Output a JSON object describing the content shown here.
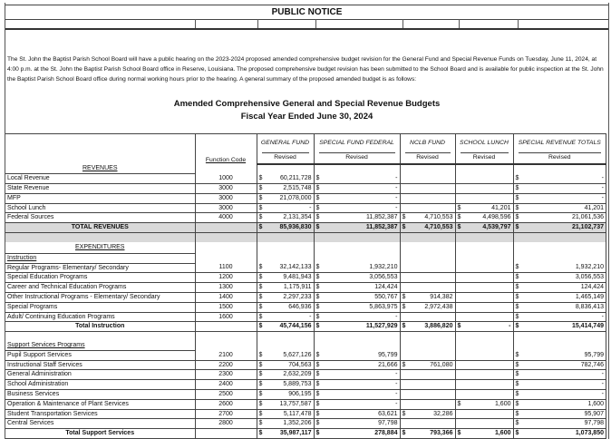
{
  "notice_title": "PUBLIC NOTICE",
  "intro": "The St. John the Baptist Parish School Board will have a public hearing on the 2023-2024 proposed amended comprehensive budget revision for the General Fund and Special Revenue Funds on Tuesday, June 11, 2024, at 4:00 p.m. at the St. John the Baptist Parish School Board office in Reserve, Louisiana.  The proposed comprehensive budget revision has been submitted to the School Board and is available for public inspection at the St. John the Baptist Parish School Board office during normal working hours prior to the hearing.  A general summary of the proposed amended budget is as follows:",
  "title": "Amended Comprehensive General and Special Revenue Budgets",
  "subtitle": "Fiscal Year Ended June 30, 2024",
  "columns": {
    "function_code": "Function Code",
    "funds": [
      "GENERAL FUND",
      "SPECIAL FUND FEDERAL",
      "NCLB FUND",
      "SCHOOL LUNCH",
      "SPECIAL REVENUE TOTALS"
    ],
    "sub": "Revised"
  },
  "currency": "$",
  "rows": [
    {
      "type": "heading",
      "label": "REVENUES"
    },
    {
      "label": "Local Revenue",
      "code": "1000",
      "v": [
        "60,211,728",
        "-",
        null,
        null,
        "-"
      ]
    },
    {
      "label": "State Revenue",
      "code": "3000",
      "v": [
        "2,515,748",
        "-",
        null,
        null,
        "-"
      ]
    },
    {
      "label": "MFP",
      "code": "3000",
      "v": [
        "21,078,000",
        "-",
        null,
        null,
        "-"
      ]
    },
    {
      "label": "School Lunch",
      "code": "3000",
      "v": [
        "-",
        "-",
        null,
        "41,201",
        "41,201"
      ]
    },
    {
      "label": "Federal Sources",
      "code": "4000",
      "v": [
        "2,131,354",
        "11,852,387",
        "4,710,553",
        "4,498,596",
        "21,061,536"
      ]
    },
    {
      "type": "total",
      "gray": true,
      "label": "TOTAL REVENUES",
      "v": [
        "85,936,830",
        "11,852,387",
        "4,710,553",
        "4,539,797",
        "21,102,737"
      ]
    },
    {
      "type": "spacer",
      "gray": true
    },
    {
      "type": "heading",
      "label": "EXPENDITURES"
    },
    {
      "type": "section",
      "label": "Instruction"
    },
    {
      "label": "Regular Programs- Elementary/ Secondary",
      "code": "1100",
      "v": [
        "32,142,133",
        "1,932,210",
        null,
        null,
        "1,932,210"
      ]
    },
    {
      "label": "Special Education Programs",
      "code": "1200",
      "v": [
        "9,481,943",
        "3,056,553",
        null,
        null,
        "3,056,553"
      ]
    },
    {
      "label": "Career and Technical Education Programs",
      "code": "1300",
      "v": [
        "1,175,911",
        "124,424",
        null,
        null,
        "124,424"
      ]
    },
    {
      "label": "Other Instructional Programs - Elementary/ Secondary",
      "code": "1400",
      "v": [
        "2,297,233",
        "550,767",
        "914,382",
        null,
        "1,465,149"
      ]
    },
    {
      "label": "Special Programs",
      "code": "1500",
      "v": [
        "646,936",
        "5,863,975",
        "2,972,438",
        null,
        "8,836,413"
      ]
    },
    {
      "label": "Adult/ Continuing Education Programs",
      "code": "1600",
      "v": [
        "-",
        "-",
        null,
        null,
        "-"
      ]
    },
    {
      "type": "total",
      "label": "Total Instruction",
      "v": [
        "45,744,156",
        "11,527,929",
        "3,886,820",
        "-",
        "15,414,749"
      ]
    },
    {
      "type": "spacer"
    },
    {
      "type": "section",
      "label": "Support Services Programs"
    },
    {
      "label": "Pupil Support Services",
      "code": "2100",
      "v": [
        "5,627,126",
        "95,799",
        null,
        null,
        "95,799"
      ]
    },
    {
      "label": "Instructional Staff Services",
      "code": "2200",
      "v": [
        "704,563",
        "21,666",
        "761,080",
        null,
        "782,746"
      ]
    },
    {
      "label": "General Administration",
      "code": "2300",
      "v": [
        "2,632,209",
        "-",
        null,
        null,
        "-"
      ]
    },
    {
      "label": "School Administration",
      "code": "2400",
      "v": [
        "5,889,753",
        "-",
        null,
        null,
        "-"
      ]
    },
    {
      "label": "Business Services",
      "code": "2500",
      "v": [
        "906,195",
        "-",
        null,
        null,
        "-"
      ]
    },
    {
      "label": "Operation & Maintenance of Plant Services",
      "code": "2600",
      "v": [
        "13,757,587",
        "-",
        null,
        "1,600",
        "1,600"
      ]
    },
    {
      "label": "Student Transportation Services",
      "code": "2700",
      "v": [
        "5,117,478",
        "63,621",
        "32,286",
        null,
        "95,907"
      ]
    },
    {
      "label": "Central Services",
      "code": "2800",
      "v": [
        "1,352,206",
        "97,798",
        null,
        null,
        "97,798"
      ]
    },
    {
      "type": "total",
      "label": "Total Support Services",
      "v": [
        "35,987,117",
        "278,884",
        "793,366",
        "1,600",
        "1,073,850"
      ]
    }
  ]
}
